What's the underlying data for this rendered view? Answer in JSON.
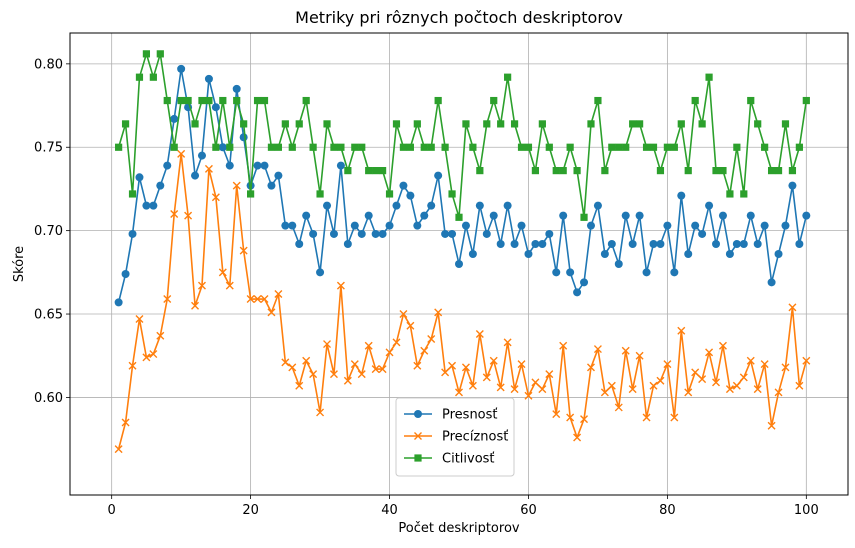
{
  "chart_data": {
    "type": "line",
    "title": "Metriky pri rôznych počtoch deskriptorov",
    "xlabel": "Počet deskriptorov",
    "ylabel": "Skóre",
    "xlim": [
      -6,
      106
    ],
    "ylim": [
      0.5415,
      0.8185
    ],
    "xticks": [
      0,
      20,
      40,
      60,
      80,
      100
    ],
    "yticks": [
      0.6,
      0.65,
      0.7,
      0.75,
      0.8
    ],
    "grid": true,
    "legend_position": "bottom-center",
    "x": [
      1,
      2,
      3,
      4,
      5,
      6,
      7,
      8,
      9,
      10,
      11,
      12,
      13,
      14,
      15,
      16,
      17,
      18,
      19,
      20,
      21,
      22,
      23,
      24,
      25,
      26,
      27,
      28,
      29,
      30,
      31,
      32,
      33,
      34,
      35,
      36,
      37,
      38,
      39,
      40,
      41,
      42,
      43,
      44,
      45,
      46,
      47,
      48,
      49,
      50,
      51,
      52,
      53,
      54,
      55,
      56,
      57,
      58,
      59,
      60,
      61,
      62,
      63,
      64,
      65,
      66,
      67,
      68,
      69,
      70,
      71,
      72,
      73,
      74,
      75,
      76,
      77,
      78,
      79,
      80,
      81,
      82,
      83,
      84,
      85,
      86,
      87,
      88,
      89,
      90,
      91,
      92,
      93,
      94,
      95,
      96,
      97,
      98,
      99,
      100
    ],
    "series": [
      {
        "name": "Presnosť",
        "color": "#1f77b4",
        "marker": "circle",
        "values": [
          0.657,
          0.674,
          0.698,
          0.732,
          0.715,
          0.715,
          0.727,
          0.739,
          0.767,
          0.797,
          0.774,
          0.733,
          0.745,
          0.791,
          0.774,
          0.75,
          0.739,
          0.785,
          0.756,
          0.727,
          0.739,
          0.739,
          0.727,
          0.733,
          0.703,
          0.703,
          0.692,
          0.709,
          0.698,
          0.675,
          0.715,
          0.698,
          0.739,
          0.692,
          0.703,
          0.698,
          0.709,
          0.698,
          0.698,
          0.703,
          0.715,
          0.727,
          0.721,
          0.703,
          0.709,
          0.715,
          0.733,
          0.698,
          0.698,
          0.68,
          0.703,
          0.686,
          0.715,
          0.698,
          0.709,
          0.692,
          0.715,
          0.692,
          0.703,
          0.686,
          0.692,
          0.692,
          0.698,
          0.675,
          0.709,
          0.675,
          0.663,
          0.669,
          0.703,
          0.715,
          0.686,
          0.692,
          0.68,
          0.709,
          0.692,
          0.709,
          0.675,
          0.692,
          0.692,
          0.703,
          0.675,
          0.721,
          0.686,
          0.703,
          0.698,
          0.715,
          0.692,
          0.709,
          0.686,
          0.692,
          0.692,
          0.709,
          0.692,
          0.703,
          0.669,
          0.686,
          0.703,
          0.727,
          0.692,
          0.709
        ]
      },
      {
        "name": "Precíznosť",
        "color": "#ff7f0e",
        "marker": "x",
        "values": [
          0.569,
          0.585,
          0.619,
          0.647,
          0.624,
          0.626,
          0.637,
          0.659,
          0.71,
          0.746,
          0.709,
          0.655,
          0.667,
          0.737,
          0.72,
          0.675,
          0.667,
          0.727,
          0.688,
          0.659,
          0.659,
          0.659,
          0.651,
          0.662,
          0.621,
          0.618,
          0.607,
          0.622,
          0.614,
          0.591,
          0.632,
          0.614,
          0.667,
          0.61,
          0.62,
          0.614,
          0.631,
          0.617,
          0.617,
          0.627,
          0.633,
          0.65,
          0.643,
          0.619,
          0.628,
          0.635,
          0.651,
          0.615,
          0.619,
          0.603,
          0.618,
          0.607,
          0.638,
          0.612,
          0.622,
          0.606,
          0.633,
          0.605,
          0.62,
          0.601,
          0.609,
          0.605,
          0.614,
          0.59,
          0.631,
          0.588,
          0.576,
          0.587,
          0.618,
          0.629,
          0.603,
          0.607,
          0.594,
          0.628,
          0.605,
          0.625,
          0.588,
          0.607,
          0.61,
          0.62,
          0.588,
          0.64,
          0.603,
          0.615,
          0.611,
          0.627,
          0.609,
          0.631,
          0.605,
          0.607,
          0.612,
          0.622,
          0.605,
          0.62,
          0.583,
          0.603,
          0.618,
          0.654,
          0.607,
          0.622
        ]
      },
      {
        "name": "Citlivosť",
        "color": "#2ca02c",
        "marker": "square",
        "values": [
          0.75,
          0.764,
          0.722,
          0.792,
          0.806,
          0.792,
          0.806,
          0.778,
          0.75,
          0.778,
          0.778,
          0.764,
          0.778,
          0.778,
          0.75,
          0.778,
          0.75,
          0.778,
          0.764,
          0.722,
          0.778,
          0.778,
          0.75,
          0.75,
          0.764,
          0.75,
          0.764,
          0.778,
          0.75,
          0.722,
          0.764,
          0.75,
          0.75,
          0.736,
          0.75,
          0.75,
          0.736,
          0.736,
          0.736,
          0.722,
          0.764,
          0.75,
          0.75,
          0.764,
          0.75,
          0.75,
          0.778,
          0.75,
          0.722,
          0.708,
          0.764,
          0.75,
          0.736,
          0.764,
          0.778,
          0.764,
          0.792,
          0.764,
          0.75,
          0.75,
          0.736,
          0.764,
          0.75,
          0.736,
          0.736,
          0.75,
          0.736,
          0.708,
          0.764,
          0.778,
          0.736,
          0.75,
          0.75,
          0.75,
          0.764,
          0.764,
          0.75,
          0.75,
          0.736,
          0.75,
          0.75,
          0.764,
          0.736,
          0.778,
          0.764,
          0.792,
          0.736,
          0.736,
          0.722,
          0.75,
          0.722,
          0.778,
          0.764,
          0.75,
          0.736,
          0.736,
          0.764,
          0.736,
          0.75,
          0.778
        ]
      }
    ]
  }
}
